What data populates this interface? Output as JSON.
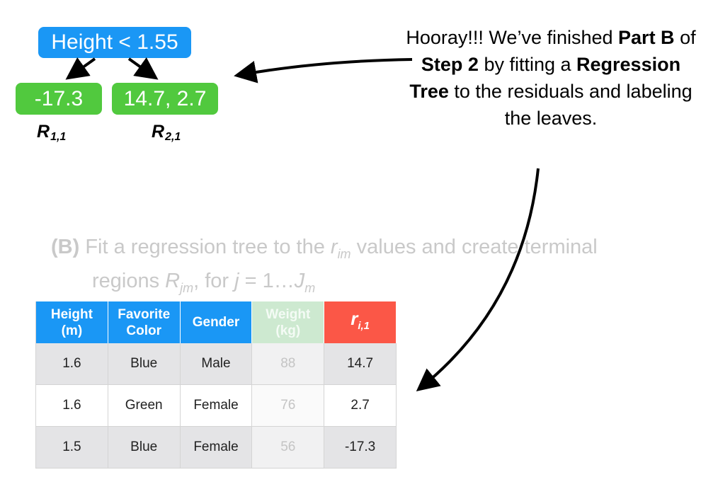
{
  "tree": {
    "root": "Height < 1.55",
    "leaf_left": "-17.3",
    "leaf_right": "14.7, 2.7",
    "region_left": {
      "letter": "R",
      "sub": "1,1"
    },
    "region_right": {
      "letter": "R",
      "sub": "2,1"
    }
  },
  "callout": {
    "t1": "Hooray!!! We’ve finished ",
    "b1": "Part B",
    "t2": " of ",
    "b2": "Step 2",
    "t3": " by fitting a ",
    "b3": "Regression Tree",
    "t4": " to the residuals and labeling the leaves."
  },
  "step": {
    "label": "(B)",
    "l1a": "Fit a regression tree to the ",
    "r": "r",
    "r_sub": "im",
    "l1b": " values and create terminal",
    "l2a": "regions ",
    "R": "R",
    "R_sub": "jm",
    "l2b": ", for ",
    "j": "j",
    "l2c": " = 1…",
    "J": "J",
    "J_sub": "m"
  },
  "table": {
    "headers": {
      "height": [
        "Height",
        "(m)"
      ],
      "color": [
        "Favorite",
        "Color"
      ],
      "gender": "Gender",
      "weight": [
        "Weight",
        "(kg)"
      ],
      "resid": {
        "r": "r",
        "sub": "i,1"
      }
    },
    "rows": [
      {
        "height": "1.6",
        "color": "Blue",
        "gender": "Male",
        "weight": "88",
        "resid": "14.7"
      },
      {
        "height": "1.6",
        "color": "Green",
        "gender": "Female",
        "weight": "76",
        "resid": "2.7"
      },
      {
        "height": "1.5",
        "color": "Blue",
        "gender": "Female",
        "weight": "56",
        "resid": "-17.3"
      }
    ]
  },
  "colors": {
    "root_node": "#1a97f5",
    "leaf_node": "#51c93e",
    "header_blue": "#1a97f5",
    "header_faded": "#cde9d0",
    "header_resid": "#fb5747"
  }
}
